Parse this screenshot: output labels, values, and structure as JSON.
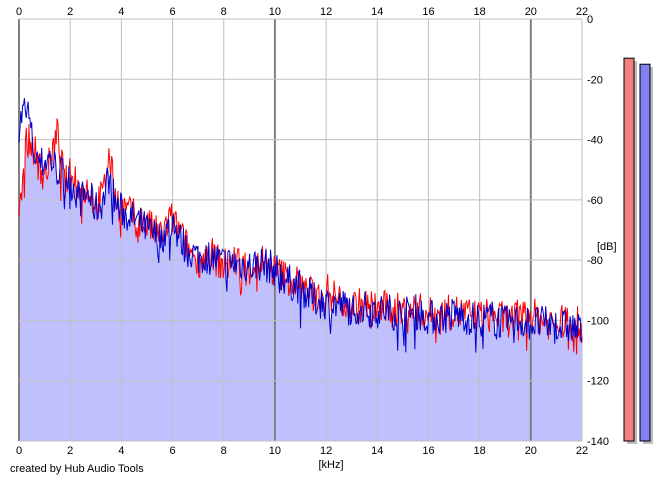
{
  "credit": "created by Hub Audio Tools",
  "colors": {
    "left": "#ff0000",
    "right": "#0000cc",
    "fill": "#c0c0ff",
    "grid": "#c0c0c0",
    "grid_major": "#808080",
    "meter_left": "#f08080",
    "meter_right": "#8080f0"
  },
  "chart_data": {
    "type": "line",
    "xlabel": "[kHz]",
    "ylabel": "[dB]",
    "xlim": [
      0,
      22
    ],
    "ylim": [
      -140,
      0
    ],
    "x_ticks": [
      0,
      2,
      4,
      6,
      8,
      10,
      12,
      14,
      16,
      18,
      20,
      22
    ],
    "y_ticks": [
      0,
      -20,
      -40,
      -60,
      -80,
      -100,
      -120,
      -140
    ],
    "x_tick_labels": [
      "0",
      "2",
      "4",
      "6",
      "8",
      "10",
      "12",
      "14",
      "16",
      "18",
      "20",
      "22"
    ],
    "y_tick_labels": [
      "0",
      "-20",
      "-40",
      "-60",
      "-80",
      "-100",
      "-120",
      "-140"
    ],
    "grid": true,
    "series": [
      {
        "channel": "left",
        "x": [
          0,
          0.3,
          0.6,
          0.9,
          1.2,
          1.5,
          1.8,
          2.1,
          2.4,
          2.7,
          3.0,
          3.3,
          3.5,
          3.8,
          4.2,
          4.6,
          5.0,
          5.5,
          6.0,
          6.5,
          7.0,
          7.5,
          8.0,
          8.5,
          9.0,
          9.5,
          10.0,
          10.5,
          11.0,
          11.5,
          12.0,
          12.5,
          13.0,
          13.5,
          14.0,
          14.5,
          15.0,
          15.5,
          16.0,
          16.5,
          17.0,
          17.5,
          18.0,
          18.5,
          19.0,
          19.5,
          20.0,
          20.5,
          21.0,
          21.5,
          22.0
        ],
        "y": [
          -62,
          -40,
          -43,
          -52,
          -48,
          -38,
          -55,
          -50,
          -58,
          -56,
          -62,
          -58,
          -45,
          -60,
          -64,
          -66,
          -68,
          -72,
          -66,
          -75,
          -80,
          -78,
          -82,
          -80,
          -83,
          -80,
          -84,
          -86,
          -88,
          -92,
          -90,
          -93,
          -95,
          -95,
          -96,
          -96,
          -97,
          -96,
          -98,
          -98,
          -97,
          -98,
          -99,
          -98,
          -100,
          -99,
          -98,
          -100,
          -101,
          -100,
          -102
        ]
      },
      {
        "channel": "right",
        "x": [
          0,
          0.3,
          0.6,
          0.9,
          1.2,
          1.5,
          1.8,
          2.1,
          2.4,
          2.7,
          3.0,
          3.3,
          3.5,
          3.8,
          4.2,
          4.6,
          5.0,
          5.5,
          6.0,
          6.5,
          7.0,
          7.5,
          8.0,
          8.5,
          9.0,
          9.5,
          10.0,
          10.5,
          11.0,
          11.5,
          12.0,
          12.5,
          13.0,
          13.5,
          14.0,
          14.5,
          15.0,
          15.5,
          16.0,
          16.5,
          17.0,
          17.5,
          18.0,
          18.5,
          19.0,
          19.5,
          20.0,
          20.5,
          21.0,
          21.5,
          22.0
        ],
        "y": [
          -35,
          -28,
          -45,
          -48,
          -46,
          -50,
          -52,
          -55,
          -60,
          -58,
          -63,
          -60,
          -52,
          -62,
          -65,
          -67,
          -70,
          -73,
          -68,
          -76,
          -79,
          -79,
          -81,
          -81,
          -82,
          -81,
          -83,
          -87,
          -89,
          -93,
          -94,
          -95,
          -96,
          -96,
          -97,
          -97,
          -98,
          -97,
          -99,
          -99,
          -98,
          -99,
          -100,
          -99,
          -101,
          -100,
          -101,
          -101,
          -102,
          -102,
          -104
        ]
      }
    ],
    "meters": [
      {
        "channel": "left",
        "level_db": -13
      },
      {
        "channel": "right",
        "level_db": -15
      }
    ]
  }
}
